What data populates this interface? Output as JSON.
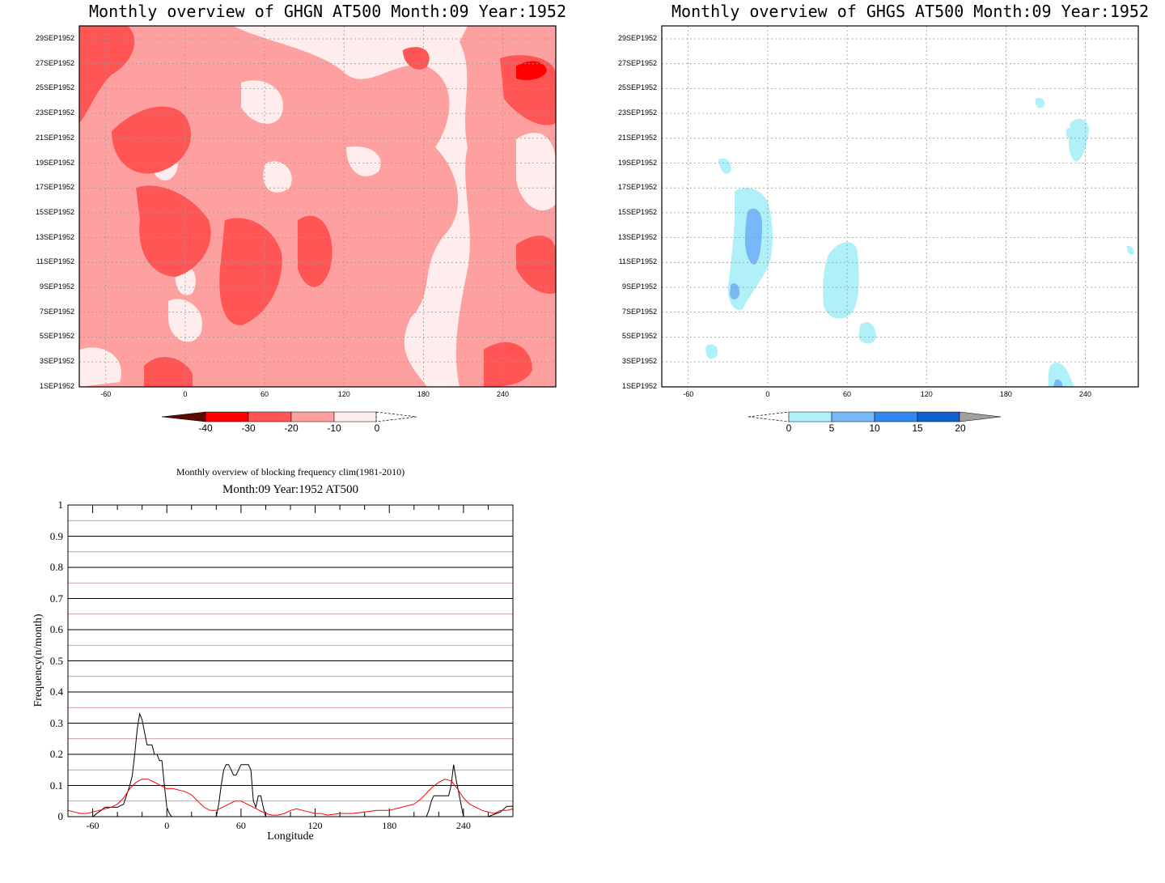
{
  "charts": [
    {
      "title": "Monthly overview of GHGN AT500 Month:09 Year:1952",
      "y_ticks": [
        "29SEP1952",
        "27SEP1952",
        "25SEP1952",
        "23SEP1952",
        "21SEP1952",
        "19SEP1952",
        "17SEP1952",
        "15SEP1952",
        "13SEP1952",
        "11SEP1952",
        "9SEP1952",
        "7SEP1952",
        "5SEP1952",
        "3SEP1952",
        "1SEP1952"
      ],
      "x_ticks": [
        "-60",
        "0",
        "60",
        "120",
        "180",
        "240"
      ],
      "colorbar_labels": [
        "-40",
        "-30",
        "-20",
        "-10",
        "0"
      ],
      "colorbar_colors": [
        "#5a0a00",
        "#ff0000",
        "#ff5555",
        "#ffa0a0",
        "#ffecec"
      ]
    },
    {
      "title": "Monthly overview of GHGS AT500 Month:09 Year:1952",
      "y_ticks": [
        "29SEP1952",
        "27SEP1952",
        "25SEP1952",
        "23SEP1952",
        "21SEP1952",
        "19SEP1952",
        "17SEP1952",
        "15SEP1952",
        "13SEP1952",
        "11SEP1952",
        "9SEP1952",
        "7SEP1952",
        "5SEP1952",
        "3SEP1952",
        "1SEP1952"
      ],
      "x_ticks": [
        "-60",
        "0",
        "60",
        "120",
        "180",
        "240"
      ],
      "colorbar_labels": [
        "0",
        "5",
        "10",
        "15",
        "20"
      ],
      "colorbar_colors": [
        "#b0f0f8",
        "#78b8f8",
        "#3088f0",
        "#1060d0",
        "#a0a0a0"
      ]
    }
  ],
  "chart_data": [
    {
      "type": "heatmap",
      "title": "Monthly overview of GHGN AT500 Month:09 Year:1952",
      "xlabel": "",
      "ylabel": "",
      "x_range": [
        -80,
        280
      ],
      "y_range": [
        "1SEP1952",
        "30SEP1952"
      ],
      "levels": [
        -40,
        -30,
        -20,
        -10,
        0
      ]
    },
    {
      "type": "heatmap",
      "title": "Monthly overview of GHGS AT500 Month:09 Year:1952",
      "xlabel": "",
      "ylabel": "",
      "x_range": [
        -80,
        280
      ],
      "y_range": [
        "1SEP1952",
        "30SEP1952"
      ],
      "levels": [
        0,
        5,
        10,
        15,
        20
      ]
    },
    {
      "type": "line",
      "title": "Monthly overview of blocking frequency clim(1981-2010)",
      "subtitle": "Month:09 Year:1952  AT500",
      "xlabel": "Longitude",
      "ylabel": "Frequency(n/month)",
      "xlim": [
        -80,
        280
      ],
      "ylim": [
        0,
        1
      ],
      "x_ticks": [
        "-60",
        "0",
        "60",
        "120",
        "180",
        "240"
      ],
      "y_ticks": [
        "0",
        "0.1",
        "0.2",
        "0.3",
        "0.4",
        "0.5",
        "0.6",
        "0.7",
        "0.8",
        "0.9",
        "1"
      ],
      "grid": true,
      "series": [
        {
          "color": "#000000",
          "x": [
            -80,
            -60,
            -55,
            -50,
            -45,
            -40,
            -35,
            -30,
            -28,
            -26,
            -24,
            -22,
            -20,
            -18,
            -16,
            -14,
            -12,
            -10,
            -8,
            -6,
            -4,
            -2,
            0,
            2,
            4,
            6,
            8,
            10,
            20,
            40,
            42,
            44,
            46,
            48,
            50,
            52,
            54,
            56,
            58,
            60,
            62,
            64,
            66,
            68,
            70,
            72,
            74,
            76,
            78,
            80,
            100,
            140,
            180,
            200,
            210,
            212,
            214,
            216,
            218,
            220,
            222,
            224,
            226,
            228,
            230,
            232,
            234,
            236,
            238,
            240,
            250,
            260,
            270,
            275,
            280
          ],
          "y": [
            0,
            0,
            0.015,
            0.03,
            0.03,
            0.03,
            0.04,
            0.1,
            0.13,
            0.2,
            0.28,
            0.33,
            0.31,
            0.27,
            0.23,
            0.23,
            0.23,
            0.2,
            0.2,
            0.18,
            0.18,
            0.1,
            0.03,
            0.01,
            0,
            0,
            0,
            0,
            0,
            0,
            0.04,
            0.1,
            0.15,
            0.167,
            0.167,
            0.15,
            0.133,
            0.133,
            0.15,
            0.167,
            0.167,
            0.167,
            0.167,
            0.15,
            0.05,
            0.03,
            0.067,
            0.067,
            0.03,
            0,
            0,
            0,
            0,
            0,
            0,
            0.02,
            0.05,
            0.067,
            0.067,
            0.067,
            0.067,
            0.067,
            0.067,
            0.067,
            0.1,
            0.167,
            0.12,
            0.08,
            0.04,
            0,
            0,
            0,
            0.015,
            0.033,
            0.033
          ]
        },
        {
          "color": "#ff0000",
          "x": [
            -80,
            -75,
            -70,
            -65,
            -60,
            -55,
            -50,
            -45,
            -40,
            -35,
            -30,
            -25,
            -20,
            -15,
            -10,
            -5,
            0,
            5,
            10,
            15,
            20,
            25,
            30,
            35,
            40,
            45,
            50,
            55,
            60,
            65,
            70,
            75,
            80,
            85,
            90,
            95,
            100,
            105,
            110,
            115,
            120,
            125,
            130,
            140,
            150,
            160,
            170,
            180,
            190,
            200,
            205,
            210,
            215,
            220,
            225,
            230,
            235,
            240,
            245,
            250,
            255,
            260,
            265,
            270,
            275,
            280
          ],
          "y": [
            0.02,
            0.015,
            0.01,
            0.01,
            0.015,
            0.02,
            0.025,
            0.03,
            0.04,
            0.06,
            0.09,
            0.11,
            0.12,
            0.12,
            0.11,
            0.1,
            0.09,
            0.09,
            0.085,
            0.08,
            0.07,
            0.05,
            0.03,
            0.02,
            0.02,
            0.03,
            0.04,
            0.05,
            0.05,
            0.04,
            0.03,
            0.02,
            0.01,
            0.005,
            0.005,
            0.01,
            0.02,
            0.025,
            0.02,
            0.015,
            0.01,
            0.01,
            0.005,
            0.01,
            0.01,
            0.015,
            0.02,
            0.02,
            0.03,
            0.04,
            0.055,
            0.075,
            0.095,
            0.11,
            0.12,
            0.115,
            0.09,
            0.06,
            0.04,
            0.03,
            0.02,
            0.015,
            0.01,
            0.02,
            0.02,
            0.025
          ]
        }
      ]
    }
  ]
}
